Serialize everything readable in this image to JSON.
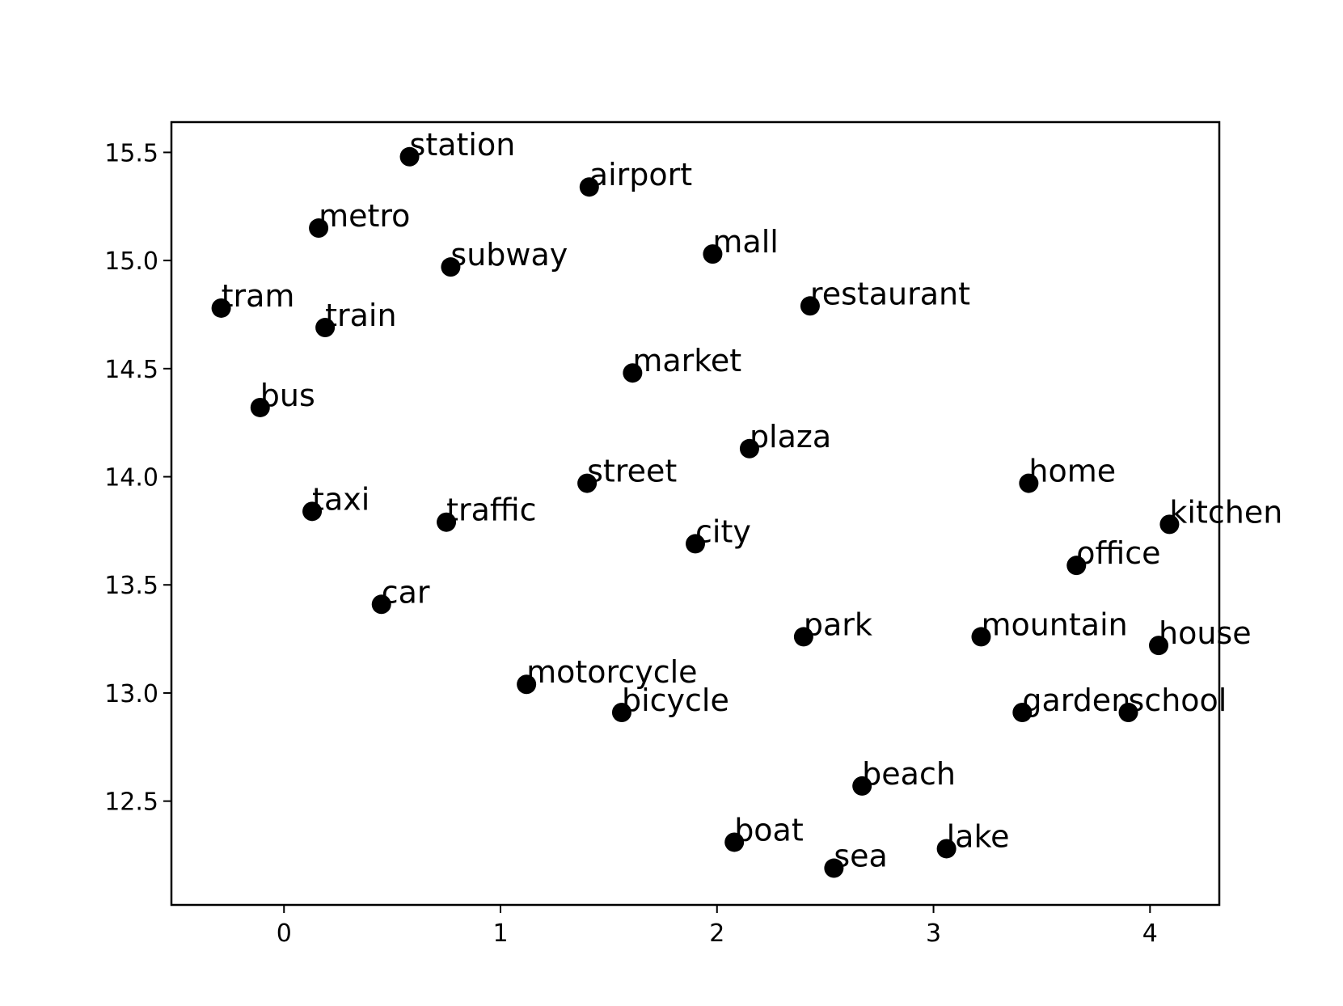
{
  "chart_data": {
    "type": "scatter",
    "xlim": [
      -0.52,
      4.32
    ],
    "ylim": [
      12.02,
      15.64
    ],
    "x_ticks": [
      0,
      1,
      2,
      3,
      4
    ],
    "y_ticks": [
      12.5,
      13.0,
      13.5,
      14.0,
      14.5,
      15.0,
      15.5
    ],
    "grid": false,
    "marker_color": "#000000",
    "points": [
      {
        "label": "station",
        "x": 0.58,
        "y": 15.48
      },
      {
        "label": "airport",
        "x": 1.41,
        "y": 15.34
      },
      {
        "label": "metro",
        "x": 0.16,
        "y": 15.15
      },
      {
        "label": "mall",
        "x": 1.98,
        "y": 15.03
      },
      {
        "label": "subway",
        "x": 0.77,
        "y": 14.97
      },
      {
        "label": "tram",
        "x": -0.29,
        "y": 14.78
      },
      {
        "label": "restaurant",
        "x": 2.43,
        "y": 14.79
      },
      {
        "label": "train",
        "x": 0.19,
        "y": 14.69
      },
      {
        "label": "market",
        "x": 1.61,
        "y": 14.48
      },
      {
        "label": "bus",
        "x": -0.11,
        "y": 14.32
      },
      {
        "label": "plaza",
        "x": 2.15,
        "y": 14.13
      },
      {
        "label": "street",
        "x": 1.4,
        "y": 13.97
      },
      {
        "label": "home",
        "x": 3.44,
        "y": 13.97
      },
      {
        "label": "taxi",
        "x": 0.13,
        "y": 13.84
      },
      {
        "label": "traffic",
        "x": 0.75,
        "y": 13.79
      },
      {
        "label": "kitchen",
        "x": 4.09,
        "y": 13.78
      },
      {
        "label": "city",
        "x": 1.9,
        "y": 13.69
      },
      {
        "label": "office",
        "x": 3.66,
        "y": 13.59
      },
      {
        "label": "car",
        "x": 0.45,
        "y": 13.41
      },
      {
        "label": "park",
        "x": 2.4,
        "y": 13.26
      },
      {
        "label": "mountain",
        "x": 3.22,
        "y": 13.26
      },
      {
        "label": "house",
        "x": 4.04,
        "y": 13.22
      },
      {
        "label": "motorcycle",
        "x": 1.12,
        "y": 13.04
      },
      {
        "label": "bicycle",
        "x": 1.56,
        "y": 12.91
      },
      {
        "label": "garden",
        "x": 3.41,
        "y": 12.91
      },
      {
        "label": "school",
        "x": 3.9,
        "y": 12.91
      },
      {
        "label": "beach",
        "x": 2.67,
        "y": 12.57
      },
      {
        "label": "boat",
        "x": 2.08,
        "y": 12.31
      },
      {
        "label": "lake",
        "x": 3.06,
        "y": 12.28
      },
      {
        "label": "sea",
        "x": 2.54,
        "y": 12.19
      }
    ]
  }
}
